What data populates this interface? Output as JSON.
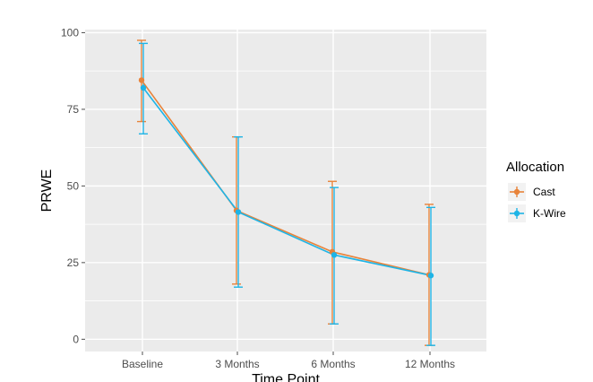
{
  "chart_data": {
    "type": "line",
    "xlabel": "Time Point",
    "ylabel": "PRWE",
    "categories": [
      "Baseline",
      "3 Months",
      "6 Months",
      "12 Months"
    ],
    "ylim": [
      -4,
      101
    ],
    "yticks": [
      0,
      25,
      50,
      75,
      100
    ],
    "grid": true,
    "legend": {
      "title": "Allocation",
      "placement": "right"
    },
    "series": [
      {
        "name": "Cast",
        "color": "#E8833A",
        "values": [
          84.5,
          42,
          28.5,
          21
        ],
        "error_low": [
          71,
          18,
          5,
          -2
        ],
        "error_high": [
          97.5,
          66,
          51.5,
          44
        ]
      },
      {
        "name": "K-Wire",
        "color": "#1EB4E6",
        "values": [
          82,
          41.5,
          27.5,
          20.8
        ],
        "error_low": [
          67,
          17,
          5,
          -2
        ],
        "error_high": [
          96.5,
          66,
          49.5,
          43
        ]
      }
    ],
    "panel_background": "#EBEBEB",
    "grid_color": "#FFFFFF"
  }
}
